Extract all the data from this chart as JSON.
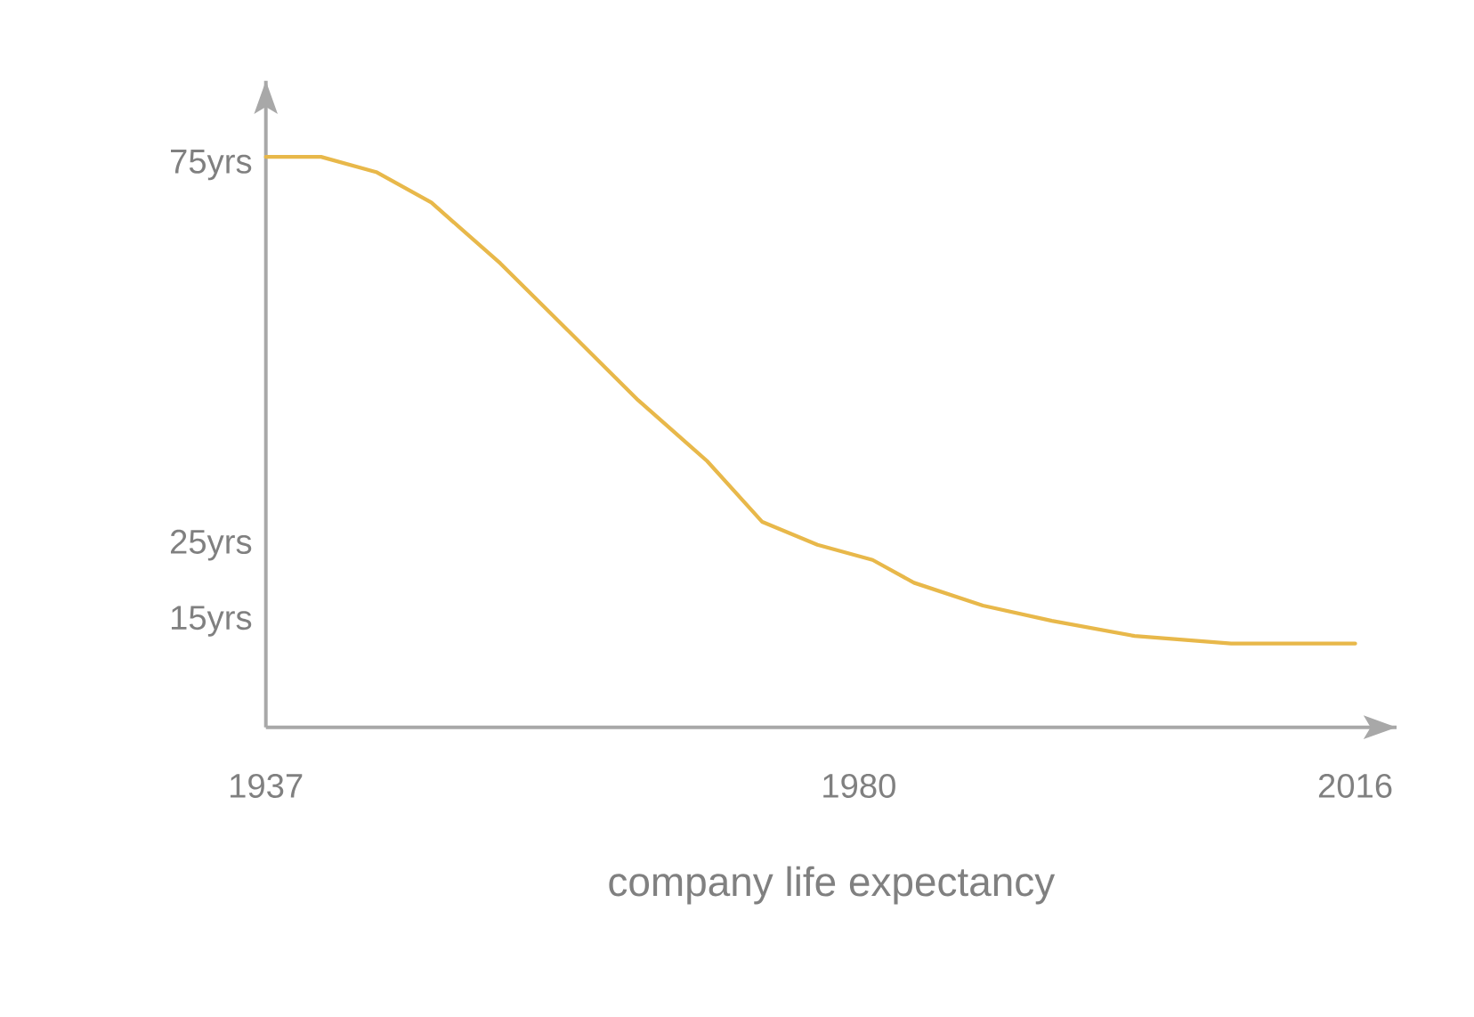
{
  "chart_data": {
    "type": "line",
    "xlabel": "company life expectancy",
    "x": [
      1937,
      1941,
      1945,
      1949,
      1954,
      1959,
      1964,
      1969,
      1973,
      1977,
      1981,
      1984,
      1989,
      1994,
      2000,
      2007,
      2010,
      2016
    ],
    "series": [
      {
        "color": "#e8b84a",
        "values": [
          75,
          75,
          73,
          69,
          61,
          52,
          43,
          35,
          27,
          24,
          22,
          19,
          16,
          14,
          12,
          11,
          11,
          11
        ]
      }
    ],
    "xlim": [
      1937,
      2019
    ],
    "ylim": [
      0,
      85
    ],
    "xticks": [
      1937,
      1980,
      2016
    ],
    "yticks": [
      {
        "value": 15,
        "label": "15yrs"
      },
      {
        "value": 25,
        "label": "25yrs"
      },
      {
        "value": 75,
        "label": "75yrs"
      }
    ],
    "grid": false,
    "marker": "none",
    "line_style": "solid"
  }
}
